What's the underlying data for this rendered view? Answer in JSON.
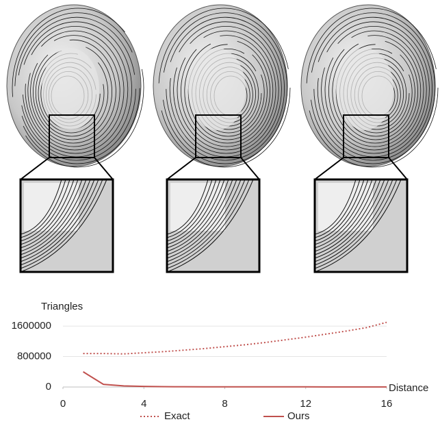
{
  "chart_data": {
    "type": "line",
    "y_label": "Triangles",
    "x_label": "Distance",
    "x": [
      1,
      2,
      3,
      4,
      5,
      6,
      7,
      8,
      9,
      10,
      11,
      12,
      13,
      14,
      15,
      16
    ],
    "series": [
      {
        "name": "Exact",
        "color": "#c0504d",
        "style": "dotted",
        "values": [
          880000,
          880000,
          870000,
          900000,
          930000,
          970000,
          1010000,
          1060000,
          1110000,
          1170000,
          1240000,
          1310000,
          1390000,
          1470000,
          1560000,
          1700000
        ]
      },
      {
        "name": "Ours",
        "color": "#c0504d",
        "style": "solid",
        "values": [
          400000,
          70000,
          30000,
          15000,
          8000,
          6000,
          5000,
          5000,
          4000,
          4000,
          4000,
          4000,
          3000,
          3000,
          3000,
          3000
        ]
      }
    ],
    "xlim": [
      0,
      16
    ],
    "xticks": [
      0,
      4,
      8,
      12,
      16
    ],
    "ylim": [
      0,
      1800000
    ],
    "yticks": [
      0,
      800000,
      1600000
    ],
    "grid": true,
    "legend": "bottom"
  }
}
